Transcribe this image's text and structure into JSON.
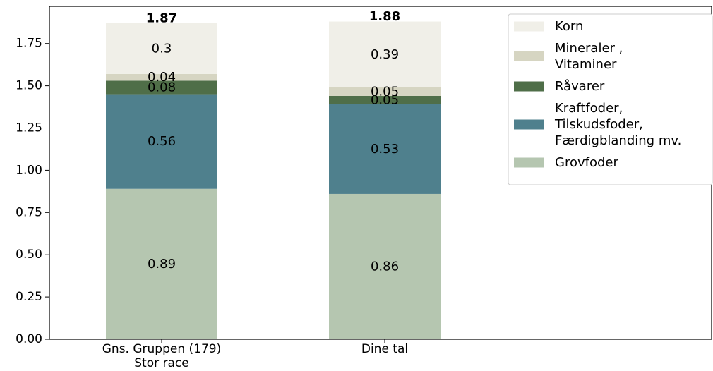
{
  "chart_data": {
    "type": "bar",
    "stacked": true,
    "categories": [
      [
        "Gns. Gruppen (179)",
        "Stor race"
      ],
      [
        "Dine tal"
      ]
    ],
    "series": [
      {
        "name": "Grovfoder",
        "values": [
          0.89,
          0.86
        ],
        "color": "#b5c6b0"
      },
      {
        "name": "Kraftfoder, Tilskudsfoder, Færdigblanding mv.",
        "legend_lines": [
          "Kraftfoder,",
          "Tilskudsfoder,",
          "Færdigblanding mv."
        ],
        "values": [
          0.56,
          0.53
        ],
        "color": "#4f808d"
      },
      {
        "name": "Råvarer",
        "legend_lines": [
          "Råvarer"
        ],
        "values": [
          0.08,
          0.05
        ],
        "color": "#4f6e48"
      },
      {
        "name": "Mineraler , Vitaminer",
        "legend_lines": [
          "Mineraler ,",
          "Vitaminer"
        ],
        "values": [
          0.04,
          0.05
        ],
        "color": "#d6d5c2"
      },
      {
        "name": "Korn",
        "legend_lines": [
          "Korn"
        ],
        "values": [
          0.3,
          0.39
        ],
        "color": "#f0efe8"
      }
    ],
    "totals": [
      "1.87",
      "1.88"
    ],
    "yticks": [
      "0.00",
      "0.25",
      "0.50",
      "0.75",
      "1.00",
      "1.25",
      "1.50",
      "1.75"
    ],
    "ylim": [
      0,
      1.97
    ],
    "legend_position": "top-right",
    "grid": false
  }
}
